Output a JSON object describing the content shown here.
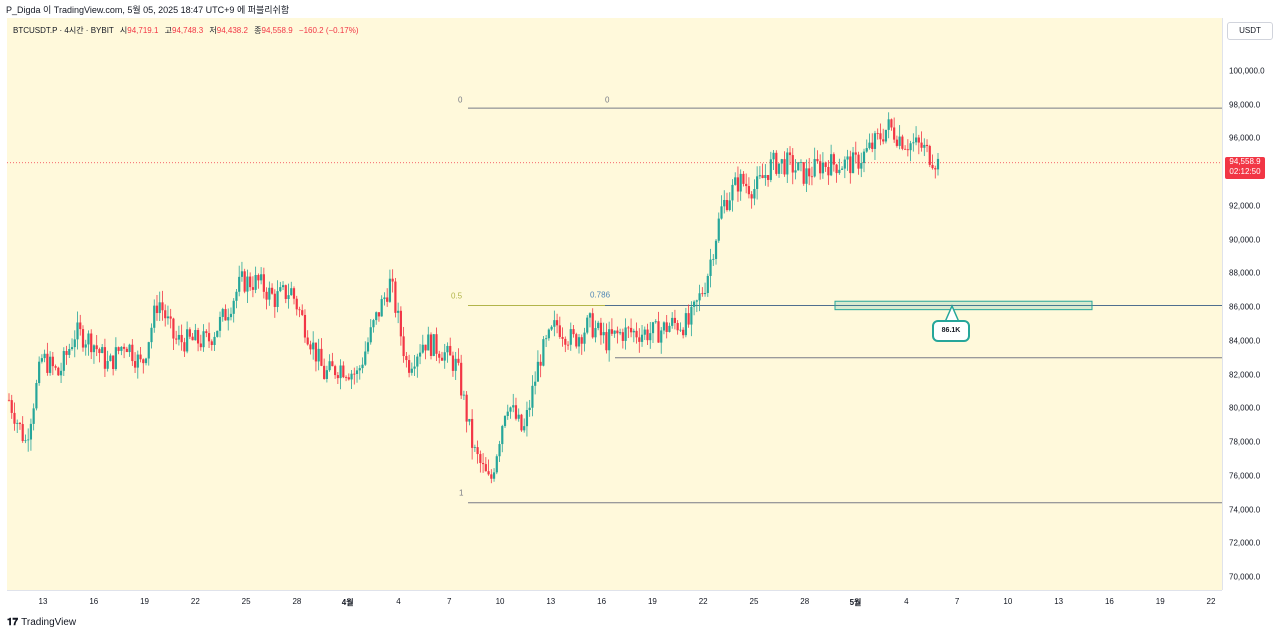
{
  "header": {
    "publish_line": "P_Digda 이 TradingView.com, 5월 05, 2025 18:47 UTC+9 에 퍼블리쉬함"
  },
  "legend": {
    "symbol": "BTCUSDT.P · 4시간 · BYBIT",
    "open_label": "시",
    "open": "94,719.1",
    "high_label": "고",
    "high": "94,748.3",
    "low_label": "저",
    "low": "94,438.2",
    "close_label": "종",
    "close": "94,558.9",
    "change": "−160.2 (−0.17%)"
  },
  "price_axis": {
    "unit": "USDT",
    "ticks": [
      "100,000.0",
      "98,000.0",
      "96,000.0",
      "94,000.0",
      "92,000.0",
      "90,000.0",
      "88,000.0",
      "86,000.0",
      "84,000.0",
      "82,000.0",
      "80,000.0",
      "78,000.0",
      "76,000.0",
      "74,000.0",
      "72,000.0",
      "70,000.0"
    ],
    "last_price": "94,558.9",
    "countdown": "02:12:50"
  },
  "time_axis": {
    "ticks": [
      "13",
      "16",
      "19",
      "22",
      "25",
      "28",
      "4월",
      "4",
      "7",
      "10",
      "13",
      "16",
      "19",
      "22",
      "25",
      "28",
      "5월",
      "4",
      "7",
      "10",
      "13",
      "16",
      "19",
      "22"
    ]
  },
  "annotations": {
    "fib_0_left": "0",
    "fib_0_right": "0",
    "fib_05": "0.5",
    "fib_0786": "0.786",
    "fib_1": "1",
    "zone_callout": "86.1K"
  },
  "colors": {
    "up": "#26a69a",
    "down": "#f23645",
    "background": "#fff9db",
    "fib_gray": "#787b86",
    "fib_05": "#b2b54a",
    "fib_0786": "#4f86b5"
  },
  "footer": {
    "logo": "TradingView"
  },
  "chart_data": {
    "type": "candlestick",
    "title": "BTCUSDT.P · 4시간 · BYBIT",
    "ylabel": "USDT",
    "ylim": [
      69000,
      102000
    ],
    "fib_levels": [
      {
        "label": "0",
        "price": 97800
      },
      {
        "label": "0.5",
        "price": 86100
      },
      {
        "label": "0.786",
        "price": 86100
      },
      {
        "label": "1",
        "price": 74400
      }
    ],
    "horizontal_lines": [
      86100,
      83000
    ],
    "zone": {
      "low": 85850,
      "high": 86350,
      "label": "86.1K"
    },
    "close_path": [
      {
        "date": "03-10",
        "price": 80500
      },
      {
        "date": "03-11",
        "price": 78000
      },
      {
        "date": "03-12",
        "price": 83000
      },
      {
        "date": "03-13",
        "price": 82000
      },
      {
        "date": "03-14",
        "price": 84500
      },
      {
        "date": "03-15",
        "price": 84000
      },
      {
        "date": "03-16",
        "price": 82500
      },
      {
        "date": "03-17",
        "price": 84000
      },
      {
        "date": "03-18",
        "price": 82500
      },
      {
        "date": "03-19",
        "price": 86500
      },
      {
        "date": "03-20",
        "price": 84000
      },
      {
        "date": "03-21",
        "price": 84000
      },
      {
        "date": "03-22",
        "price": 84000
      },
      {
        "date": "03-23",
        "price": 85500
      },
      {
        "date": "03-24",
        "price": 87500
      },
      {
        "date": "03-25",
        "price": 87500
      },
      {
        "date": "03-26",
        "price": 86500
      },
      {
        "date": "03-27",
        "price": 87000
      },
      {
        "date": "03-28",
        "price": 84500
      },
      {
        "date": "03-29",
        "price": 82000
      },
      {
        "date": "03-30",
        "price": 82500
      },
      {
        "date": "03-31",
        "price": 82000
      },
      {
        "date": "04-01",
        "price": 85000
      },
      {
        "date": "04-02",
        "price": 87500
      },
      {
        "date": "04-03",
        "price": 82500
      },
      {
        "date": "04-04",
        "price": 84000
      },
      {
        "date": "04-05",
        "price": 83500
      },
      {
        "date": "04-06",
        "price": 82500
      },
      {
        "date": "04-07",
        "price": 77500
      },
      {
        "date": "04-08",
        "price": 75500
      },
      {
        "date": "04-09",
        "price": 80500
      },
      {
        "date": "04-10",
        "price": 78500
      },
      {
        "date": "04-11",
        "price": 83000
      },
      {
        "date": "04-12",
        "price": 85000
      },
      {
        "date": "04-13",
        "price": 84000
      },
      {
        "date": "04-14",
        "price": 85000
      },
      {
        "date": "04-15",
        "price": 84000
      },
      {
        "date": "04-16",
        "price": 84500
      },
      {
        "date": "04-17",
        "price": 84500
      },
      {
        "date": "04-18",
        "price": 84500
      },
      {
        "date": "04-19",
        "price": 85000
      },
      {
        "date": "04-20",
        "price": 85000
      },
      {
        "date": "04-21",
        "price": 87500
      },
      {
        "date": "04-22",
        "price": 92000
      },
      {
        "date": "04-23",
        "price": 93500
      },
      {
        "date": "04-24",
        "price": 93000
      },
      {
        "date": "04-25",
        "price": 94500
      },
      {
        "date": "04-26",
        "price": 94500
      },
      {
        "date": "04-27",
        "price": 93800
      },
      {
        "date": "04-28",
        "price": 94500
      },
      {
        "date": "04-29",
        "price": 94500
      },
      {
        "date": "04-30",
        "price": 94500
      },
      {
        "date": "05-01",
        "price": 95500
      },
      {
        "date": "05-02",
        "price": 96700
      },
      {
        "date": "05-03",
        "price": 95800
      },
      {
        "date": "05-04",
        "price": 95500
      },
      {
        "date": "05-05",
        "price": 94558.9
      }
    ]
  }
}
